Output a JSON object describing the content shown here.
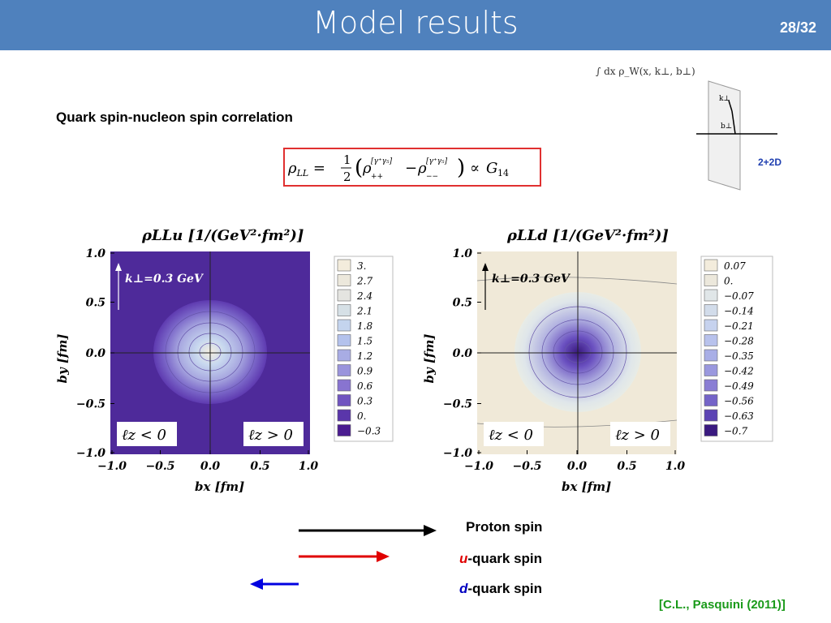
{
  "header": {
    "title": "Model results",
    "page": "28/32"
  },
  "subtitle": "Quark spin-nucleon spin correlation",
  "inset": {
    "integral_label": "∫ dx ρ_W(x, k⊥, b⊥)",
    "k_label": "k⊥",
    "b_label": "b⊥",
    "tag": "2+2D"
  },
  "plots": {
    "u": {
      "title": "ρLLu [1/(GeV²·fm²)]",
      "k_label": "k⊥=0.3 GeV",
      "left_region": "ℓz < 0",
      "right_region": "ℓz > 0",
      "xlabel": "bx [fm]",
      "ylabel": "by [fm]",
      "ticks": [
        "−1.0",
        "−0.5",
        "0.0",
        "0.5",
        "1.0"
      ],
      "yticks": [
        "1.0",
        "0.5",
        "0.0",
        "−0.5",
        "−1.0"
      ],
      "legend": [
        "3.",
        "2.7",
        "2.4",
        "2.1",
        "1.8",
        "1.5",
        "1.2",
        "0.9",
        "0.6",
        "0.3",
        "0.",
        "−0.3"
      ]
    },
    "d": {
      "title": "ρLLd [1/(GeV²·fm²)]",
      "k_label": "k⊥=0.3 GeV",
      "left_region": "ℓz < 0",
      "right_region": "ℓz > 0",
      "xlabel": "bx [fm]",
      "ylabel": "by [fm]",
      "ticks": [
        "−1.0",
        "−0.5",
        "0.0",
        "0.5",
        "1.0"
      ],
      "yticks": [
        "1.0",
        "0.5",
        "0.0",
        "−0.5",
        "−1.0"
      ],
      "legend": [
        "0.07",
        "0.",
        "−0.07",
        "−0.14",
        "−0.21",
        "−0.28",
        "−0.35",
        "−0.42",
        "−0.49",
        "−0.56",
        "−0.63",
        "−0.7"
      ]
    }
  },
  "arrows": {
    "proton": "Proton spin",
    "u_prefix": "u",
    "u_rest": "-quark spin",
    "d_prefix": "d",
    "d_rest": "-quark spin"
  },
  "citation": "[C.L., Pasquini (2011)]",
  "colors": {
    "header": "#4f81bd",
    "u_bg": "#4e2a9a",
    "d_bg": "#f0e9d8",
    "proton_arrow": "#000000",
    "u_arrow": "#e00000",
    "d_arrow": "#0000e0"
  }
}
